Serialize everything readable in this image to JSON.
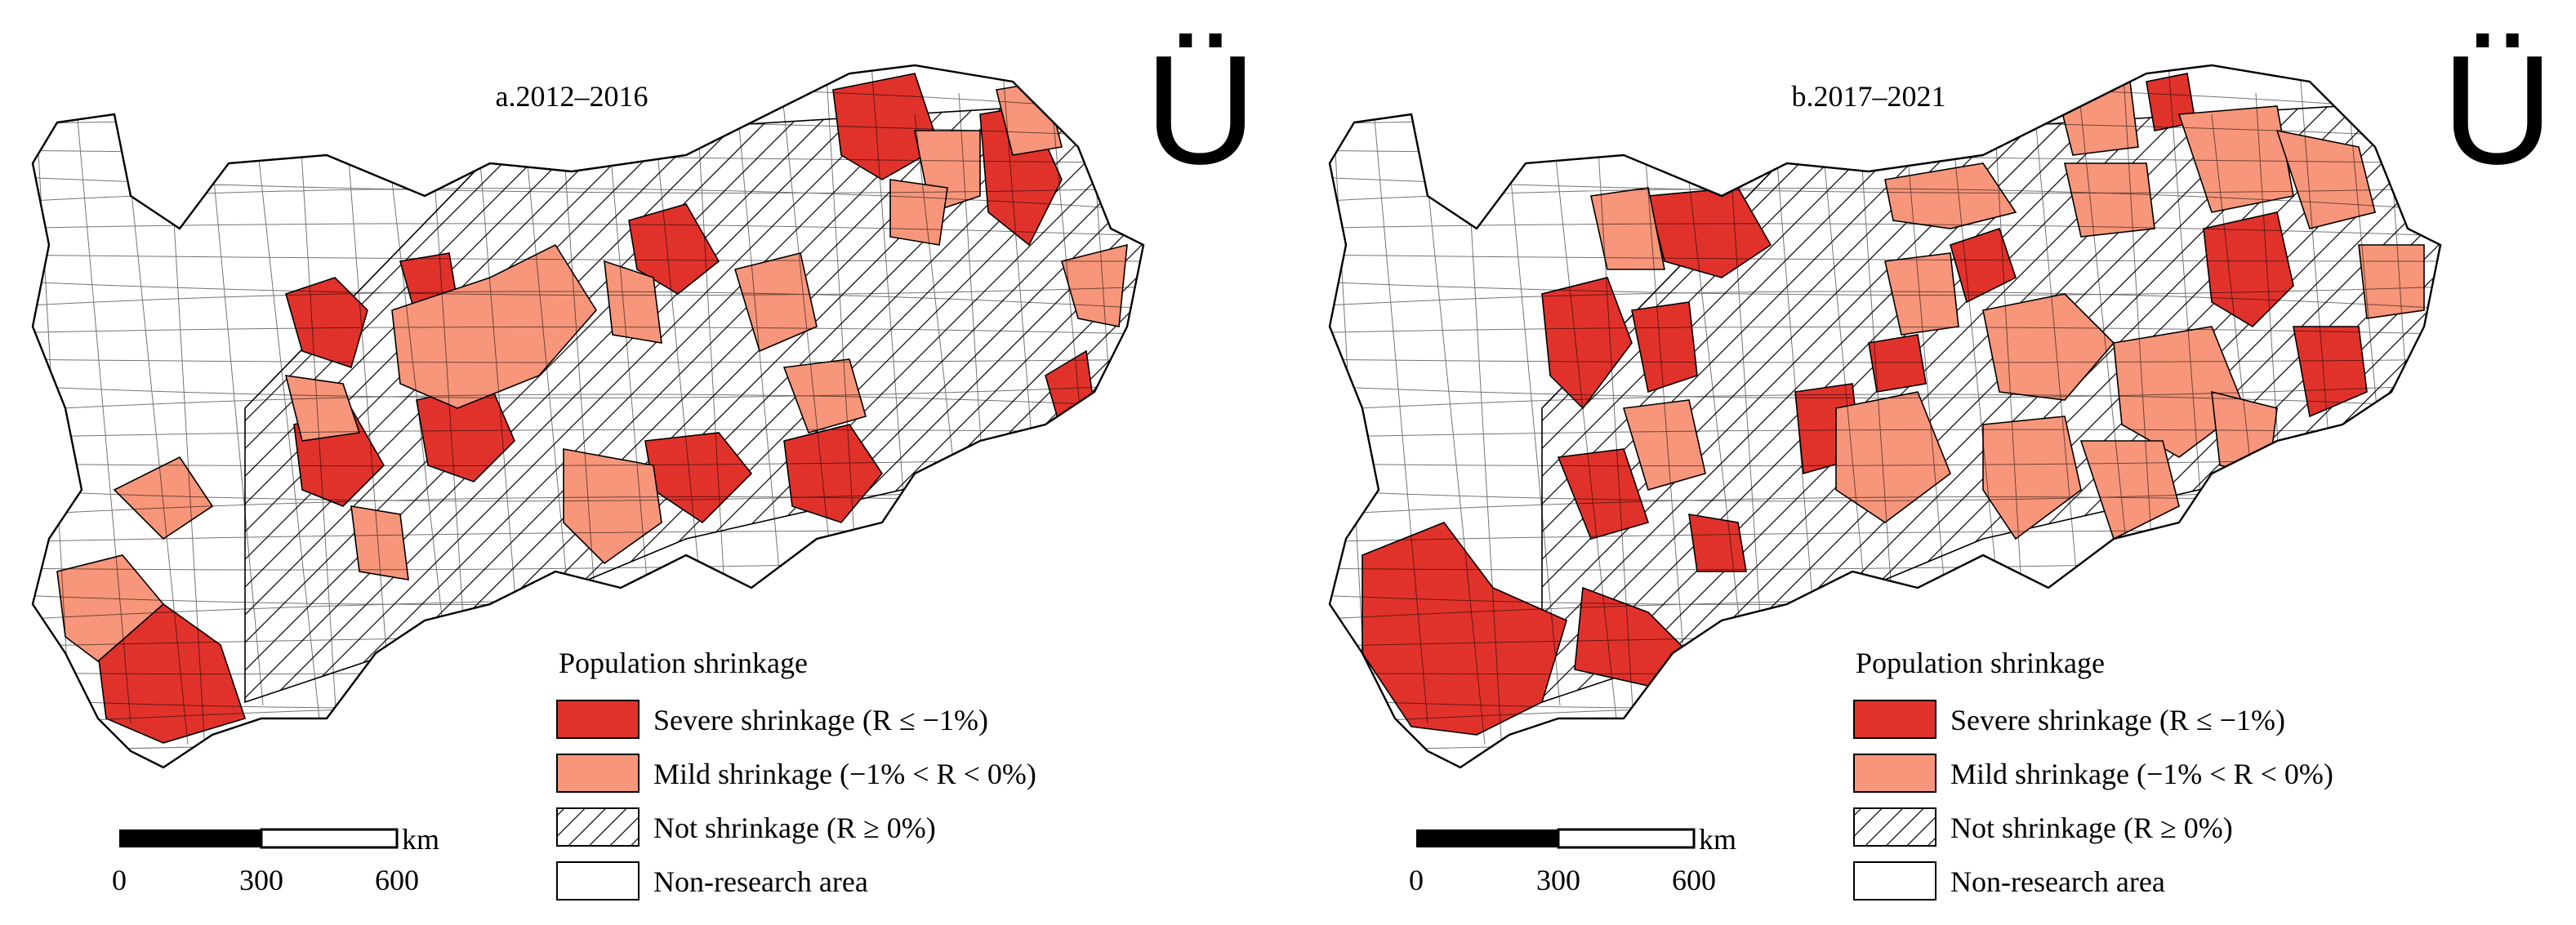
{
  "panels": [
    {
      "title": "a.2012–2016",
      "north": "Ü",
      "legend": {
        "title": "Population shrinkage",
        "items": [
          "Severe shrinkage (R ≤ −1%)",
          "Mild shrinkage (−1% < R < 0%)",
          "Not shrinkage (R ≥ 0%)",
          "Non-research area"
        ]
      },
      "scale_bar": {
        "labels": [
          "0",
          "300",
          "600"
        ],
        "unit": "km"
      }
    },
    {
      "title": "b.2017–2021",
      "north": "Ü",
      "legend": {
        "title": "Population shrinkage",
        "items": [
          "Severe shrinkage (R ≤ −1%)",
          "Mild shrinkage (−1% < R < 0%)",
          "Not shrinkage (R ≥ 0%)",
          "Non-research area"
        ]
      },
      "scale_bar": {
        "labels": [
          "0",
          "300",
          "600"
        ],
        "unit": "km"
      }
    }
  ]
}
